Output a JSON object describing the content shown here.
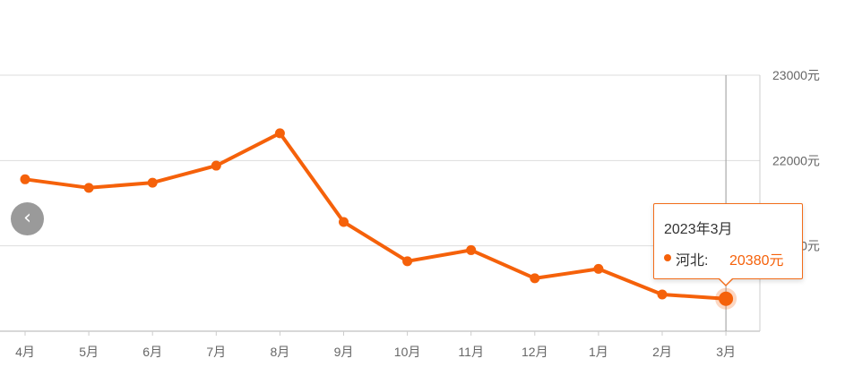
{
  "chart_data": {
    "type": "line",
    "categories": [
      "4月",
      "5月",
      "6月",
      "7月",
      "8月",
      "9月",
      "10月",
      "11月",
      "12月",
      "1月",
      "2月",
      "3月"
    ],
    "series": [
      {
        "name": "河北",
        "values": [
          21780,
          21680,
          21740,
          21940,
          22320,
          21280,
          20820,
          20950,
          20620,
          20730,
          20430,
          20380
        ]
      }
    ],
    "y_ticks": [
      "21000元",
      "22000元",
      "23000元"
    ],
    "ylim": [
      20000,
      23000
    ],
    "y_axis_position": "right",
    "grid": true,
    "line_color": "#f5610a",
    "highlight_index": 11
  },
  "tooltip": {
    "title": "2023年3月",
    "series_name": "河北:",
    "value": "20380元"
  },
  "nav": {
    "prev_icon": "‹"
  }
}
